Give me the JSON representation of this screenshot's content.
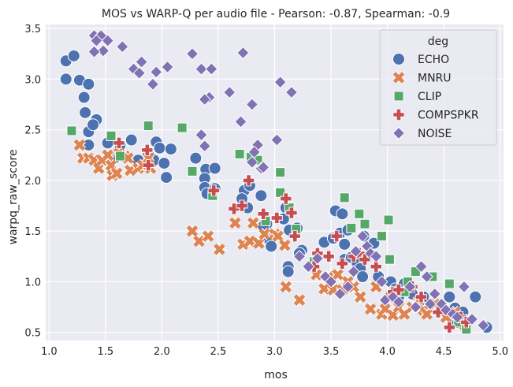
{
  "chart_data": {
    "type": "scatter",
    "title": "MOS vs WARP-Q per audio file - Pearson: -0.87, Spearman: -0.9",
    "xlabel": "mos",
    "ylabel": "warpq_raw_score",
    "xlim": [
      0.97,
      5.03
    ],
    "ylim": [
      0.42,
      3.54
    ],
    "xticks": [
      "1.0",
      "1.5",
      "2.0",
      "2.5",
      "3.0",
      "3.5",
      "4.0",
      "4.5",
      "5.0"
    ],
    "yticks": [
      "0.5",
      "1.0",
      "1.5",
      "2.0",
      "2.5",
      "3.0",
      "3.5"
    ],
    "grid": true,
    "legend": {
      "title": "deg",
      "placement": "top-right"
    },
    "series": [
      {
        "name": "ECHO",
        "marker": "circle",
        "color": "#4c72b0",
        "points": [
          [
            1.15,
            3.18
          ],
          [
            1.22,
            3.23
          ],
          [
            1.15,
            3.0
          ],
          [
            1.27,
            2.99
          ],
          [
            1.35,
            2.95
          ],
          [
            1.31,
            2.82
          ],
          [
            1.32,
            2.67
          ],
          [
            1.42,
            2.6
          ],
          [
            1.35,
            2.48
          ],
          [
            1.39,
            2.55
          ],
          [
            1.35,
            2.35
          ],
          [
            1.52,
            2.37
          ],
          [
            1.63,
            2.35
          ],
          [
            1.73,
            2.4
          ],
          [
            1.95,
            2.38
          ],
          [
            1.98,
            2.32
          ],
          [
            2.08,
            2.31
          ],
          [
            1.88,
            2.26
          ],
          [
            1.58,
            2.22
          ],
          [
            1.79,
            2.2
          ],
          [
            1.93,
            2.2
          ],
          [
            2.02,
            2.17
          ],
          [
            2.04,
            2.03
          ],
          [
            2.3,
            2.22
          ],
          [
            2.39,
            2.11
          ],
          [
            2.47,
            2.12
          ],
          [
            2.38,
            2.02
          ],
          [
            2.38,
            1.93
          ],
          [
            2.4,
            1.87
          ],
          [
            2.47,
            1.92
          ],
          [
            2.73,
            1.9
          ],
          [
            2.78,
            1.95
          ],
          [
            2.71,
            1.82
          ],
          [
            2.88,
            1.85
          ],
          [
            2.76,
            1.73
          ],
          [
            2.93,
            1.57
          ],
          [
            2.9,
            1.55
          ],
          [
            2.95,
            1.42
          ],
          [
            2.97,
            1.35
          ],
          [
            3.1,
            1.73
          ],
          [
            3.08,
            1.62
          ],
          [
            3.13,
            1.51
          ],
          [
            3.2,
            1.53
          ],
          [
            3.24,
            1.31
          ],
          [
            3.22,
            1.28
          ],
          [
            3.12,
            1.15
          ],
          [
            3.12,
            1.1
          ],
          [
            3.44,
            1.39
          ],
          [
            3.54,
            1.7
          ],
          [
            3.6,
            1.67
          ],
          [
            3.58,
            1.48
          ],
          [
            3.65,
            1.51
          ],
          [
            3.52,
            1.43
          ],
          [
            3.62,
            1.37
          ],
          [
            3.62,
            1.22
          ],
          [
            3.68,
            1.24
          ],
          [
            3.73,
            1.19
          ],
          [
            3.76,
            1.13
          ],
          [
            3.78,
            1.05
          ],
          [
            3.79,
            1.45
          ],
          [
            3.88,
            1.38
          ],
          [
            3.92,
            1.05
          ],
          [
            4.03,
            1.0
          ],
          [
            4.07,
            0.93
          ],
          [
            4.1,
            0.85
          ],
          [
            4.15,
            0.98
          ],
          [
            4.22,
            0.88
          ],
          [
            4.28,
            0.8
          ],
          [
            4.32,
            0.85
          ],
          [
            4.47,
            0.75
          ],
          [
            4.55,
            0.85
          ],
          [
            4.6,
            0.74
          ],
          [
            4.67,
            0.7
          ],
          [
            4.62,
            0.6
          ],
          [
            4.78,
            0.85
          ],
          [
            4.88,
            0.55
          ]
        ]
      },
      {
        "name": "MNRU",
        "marker": "x",
        "color": "#dd8452",
        "points": [
          [
            1.27,
            2.35
          ],
          [
            1.3,
            2.22
          ],
          [
            1.35,
            2.22
          ],
          [
            1.4,
            2.2
          ],
          [
            1.44,
            2.12
          ],
          [
            1.47,
            2.2
          ],
          [
            1.52,
            2.25
          ],
          [
            1.55,
            2.15
          ],
          [
            1.56,
            2.05
          ],
          [
            1.6,
            2.07
          ],
          [
            1.62,
            2.27
          ],
          [
            1.67,
            2.24
          ],
          [
            1.7,
            2.22
          ],
          [
            1.72,
            2.1
          ],
          [
            1.79,
            2.12
          ],
          [
            1.83,
            2.15
          ],
          [
            1.88,
            2.22
          ],
          [
            1.9,
            2.12
          ],
          [
            2.27,
            1.5
          ],
          [
            2.33,
            1.4
          ],
          [
            2.41,
            1.45
          ],
          [
            2.51,
            1.32
          ],
          [
            2.65,
            1.58
          ],
          [
            2.72,
            1.37
          ],
          [
            2.78,
            1.4
          ],
          [
            2.81,
            1.58
          ],
          [
            2.86,
            1.38
          ],
          [
            2.91,
            1.47
          ],
          [
            3.0,
            1.47
          ],
          [
            3.03,
            1.45
          ],
          [
            3.09,
            1.36
          ],
          [
            3.1,
            0.95
          ],
          [
            3.22,
            0.82
          ],
          [
            3.37,
            1.07
          ],
          [
            3.44,
            0.93
          ],
          [
            3.48,
            1.05
          ],
          [
            3.52,
            0.92
          ],
          [
            3.56,
            1.07
          ],
          [
            3.6,
            0.92
          ],
          [
            3.65,
            1.0
          ],
          [
            3.7,
            0.95
          ],
          [
            3.76,
            0.85
          ],
          [
            3.85,
            0.73
          ],
          [
            3.9,
            0.95
          ],
          [
            3.95,
            0.68
          ],
          [
            3.98,
            0.73
          ],
          [
            4.02,
            0.84
          ],
          [
            4.05,
            0.67
          ],
          [
            4.1,
            0.75
          ],
          [
            4.15,
            0.68
          ],
          [
            4.22,
            0.75
          ],
          [
            4.28,
            0.82
          ],
          [
            4.32,
            0.72
          ],
          [
            4.35,
            0.68
          ],
          [
            4.42,
            0.78
          ],
          [
            4.48,
            0.72
          ],
          [
            4.52,
            0.65
          ],
          [
            4.6,
            0.7
          ],
          [
            4.68,
            0.58
          ],
          [
            4.72,
            0.62
          ]
        ]
      },
      {
        "name": "CLIP",
        "marker": "square",
        "color": "#55a868",
        "points": [
          [
            1.2,
            2.49
          ],
          [
            1.55,
            2.44
          ],
          [
            1.63,
            2.24
          ],
          [
            1.88,
            2.54
          ],
          [
            2.18,
            2.52
          ],
          [
            2.27,
            2.09
          ],
          [
            2.45,
            1.85
          ],
          [
            2.69,
            2.26
          ],
          [
            2.79,
            2.23
          ],
          [
            2.85,
            2.2
          ],
          [
            2.92,
            1.6
          ],
          [
            3.05,
            2.08
          ],
          [
            3.05,
            1.88
          ],
          [
            3.13,
            1.73
          ],
          [
            3.19,
            1.52
          ],
          [
            3.35,
            1.2
          ],
          [
            3.62,
            1.83
          ],
          [
            3.68,
            1.53
          ],
          [
            3.75,
            1.67
          ],
          [
            3.8,
            1.57
          ],
          [
            3.95,
            1.45
          ],
          [
            4.01,
            1.61
          ],
          [
            4.02,
            1.22
          ],
          [
            4.18,
            1.0
          ],
          [
            4.15,
            0.9
          ],
          [
            4.25,
            1.1
          ],
          [
            4.4,
            1.05
          ],
          [
            4.55,
            0.98
          ],
          [
            4.63,
            0.6
          ],
          [
            4.7,
            0.53
          ]
        ]
      },
      {
        "name": "COMPSPKR",
        "marker": "plus",
        "color": "#c44e52",
        "points": [
          [
            1.62,
            2.37
          ],
          [
            1.87,
            2.3
          ],
          [
            1.88,
            2.15
          ],
          [
            2.46,
            1.9
          ],
          [
            2.64,
            1.72
          ],
          [
            2.71,
            1.75
          ],
          [
            2.77,
            2.0
          ],
          [
            2.9,
            1.67
          ],
          [
            3.02,
            1.63
          ],
          [
            3.1,
            1.82
          ],
          [
            3.15,
            1.68
          ],
          [
            3.18,
            1.45
          ],
          [
            3.35,
            1.15
          ],
          [
            3.38,
            1.28
          ],
          [
            3.48,
            1.25
          ],
          [
            3.55,
            1.45
          ],
          [
            3.6,
            1.18
          ],
          [
            3.7,
            1.25
          ],
          [
            3.75,
            1.28
          ],
          [
            3.8,
            1.22
          ],
          [
            3.9,
            1.15
          ],
          [
            4.05,
            0.9
          ],
          [
            4.1,
            0.92
          ],
          [
            4.22,
            0.95
          ],
          [
            4.3,
            0.85
          ],
          [
            4.45,
            0.7
          ],
          [
            4.55,
            0.55
          ],
          [
            4.65,
            0.65
          ],
          [
            4.7,
            0.6
          ]
        ]
      },
      {
        "name": "NOISE",
        "marker": "diamond",
        "color": "#8172b3",
        "points": [
          [
            1.4,
            3.43
          ],
          [
            1.46,
            3.43
          ],
          [
            1.52,
            3.38
          ],
          [
            1.42,
            3.38
          ],
          [
            1.48,
            3.28
          ],
          [
            1.4,
            3.27
          ],
          [
            1.65,
            3.32
          ],
          [
            1.75,
            3.1
          ],
          [
            1.82,
            3.17
          ],
          [
            1.8,
            3.06
          ],
          [
            1.95,
            3.07
          ],
          [
            2.05,
            3.12
          ],
          [
            1.92,
            2.95
          ],
          [
            2.27,
            3.25
          ],
          [
            2.35,
            3.1
          ],
          [
            2.44,
            3.1
          ],
          [
            2.42,
            2.82
          ],
          [
            2.38,
            2.8
          ],
          [
            2.35,
            2.45
          ],
          [
            2.38,
            2.34
          ],
          [
            2.72,
            3.26
          ],
          [
            2.6,
            2.87
          ],
          [
            2.7,
            2.58
          ],
          [
            2.8,
            2.75
          ],
          [
            2.85,
            2.35
          ],
          [
            2.82,
            2.28
          ],
          [
            2.8,
            2.18
          ],
          [
            2.88,
            2.12
          ],
          [
            2.9,
            2.13
          ],
          [
            3.02,
            2.4
          ],
          [
            3.05,
            2.97
          ],
          [
            3.15,
            2.87
          ],
          [
            3.22,
            1.25
          ],
          [
            3.3,
            1.15
          ],
          [
            3.38,
            1.23
          ],
          [
            3.45,
            1.05
          ],
          [
            3.5,
            1.0
          ],
          [
            3.58,
            0.88
          ],
          [
            3.65,
            0.95
          ],
          [
            3.7,
            1.1
          ],
          [
            3.72,
            1.3
          ],
          [
            3.78,
            1.45
          ],
          [
            3.82,
            1.35
          ],
          [
            3.85,
            1.28
          ],
          [
            3.9,
            1.25
          ],
          [
            3.95,
            1.0
          ],
          [
            3.98,
            0.82
          ],
          [
            4.05,
            0.85
          ],
          [
            4.1,
            0.8
          ],
          [
            4.2,
            0.95
          ],
          [
            4.25,
            0.75
          ],
          [
            4.3,
            1.15
          ],
          [
            4.35,
            1.05
          ],
          [
            4.38,
            0.78
          ],
          [
            4.42,
            0.88
          ],
          [
            4.48,
            0.78
          ],
          [
            4.52,
            0.72
          ],
          [
            4.58,
            0.68
          ],
          [
            4.62,
            0.65
          ],
          [
            4.68,
            0.95
          ],
          [
            4.75,
            0.63
          ],
          [
            4.85,
            0.57
          ]
        ]
      }
    ]
  }
}
